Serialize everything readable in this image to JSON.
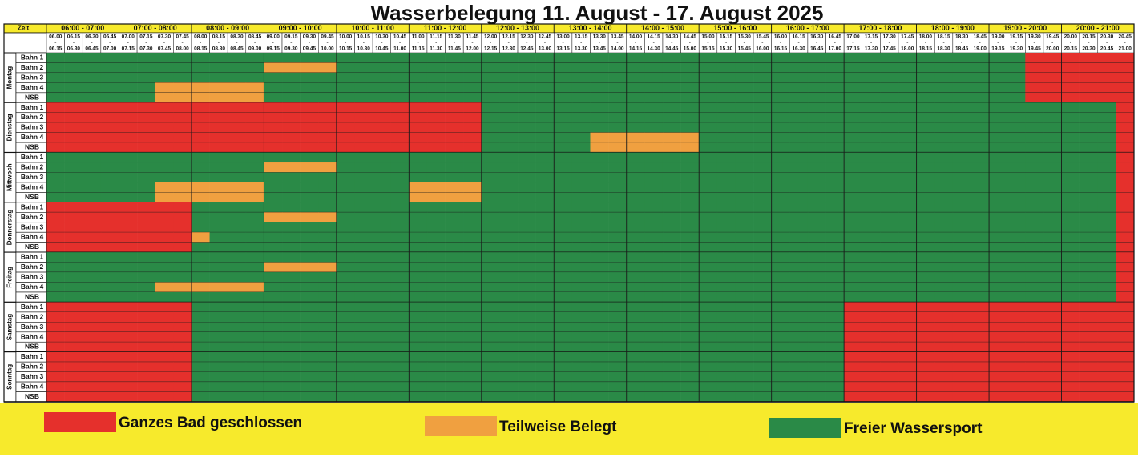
{
  "title": "Wasserbelegung 11. August - 17. August 2025",
  "header": {
    "corner": "Zeit",
    "hours": [
      "06:00 - 07:00",
      "07:00 - 08:00",
      "08:00 - 09:00",
      "09:00 - 10:00",
      "10:00 - 11:00",
      "11:00 - 12:00",
      "12:00 - 13:00",
      "13:00 - 14:00",
      "14:00 - 15:00",
      "15:00 - 16:00",
      "16:00 - 17:00",
      "17:00 - 18:00",
      "18:00 - 19:00",
      "19:00 - 20:00",
      "20:00 - 21:00"
    ],
    "separator": "-",
    "slots": [
      {
        "start": "06.00",
        "end": "06.15"
      },
      {
        "start": "06.15",
        "end": "06.30"
      },
      {
        "start": "06.30",
        "end": "06.45"
      },
      {
        "start": "06.45",
        "end": "07.00"
      },
      {
        "start": "07.00",
        "end": "07.15"
      },
      {
        "start": "07.15",
        "end": "07.30"
      },
      {
        "start": "07.30",
        "end": "07.45"
      },
      {
        "start": "07.45",
        "end": "08.00"
      },
      {
        "start": "08.00",
        "end": "08.15"
      },
      {
        "start": "08.15",
        "end": "08.30"
      },
      {
        "start": "08.30",
        "end": "08.45"
      },
      {
        "start": "08.45",
        "end": "09.00"
      },
      {
        "start": "09.00",
        "end": "09.15"
      },
      {
        "start": "09.15",
        "end": "09.30"
      },
      {
        "start": "09.30",
        "end": "09.45"
      },
      {
        "start": "09.45",
        "end": "10.00"
      },
      {
        "start": "10.00",
        "end": "10.15"
      },
      {
        "start": "10.15",
        "end": "10.30"
      },
      {
        "start": "10.30",
        "end": "10.45"
      },
      {
        "start": "10.45",
        "end": "11.00"
      },
      {
        "start": "11.00",
        "end": "11.15"
      },
      {
        "start": "11.15",
        "end": "11.30"
      },
      {
        "start": "11.30",
        "end": "11.45"
      },
      {
        "start": "11.45",
        "end": "12.00"
      },
      {
        "start": "12.00",
        "end": "12.15"
      },
      {
        "start": "12.15",
        "end": "12.30"
      },
      {
        "start": "12.30",
        "end": "12.45"
      },
      {
        "start": "12.45",
        "end": "13.00"
      },
      {
        "start": "13.00",
        "end": "13.15"
      },
      {
        "start": "13.15",
        "end": "13.30"
      },
      {
        "start": "13.30",
        "end": "13.45"
      },
      {
        "start": "13.45",
        "end": "14.00"
      },
      {
        "start": "14.00",
        "end": "14.15"
      },
      {
        "start": "14.15",
        "end": "14.30"
      },
      {
        "start": "14.30",
        "end": "14.45"
      },
      {
        "start": "14.45",
        "end": "15.00"
      },
      {
        "start": "15.00",
        "end": "15.15"
      },
      {
        "start": "15.15",
        "end": "15.30"
      },
      {
        "start": "15.30",
        "end": "15.45"
      },
      {
        "start": "15.45",
        "end": "16.00"
      },
      {
        "start": "16.00",
        "end": "16.15"
      },
      {
        "start": "16.15",
        "end": "16.30"
      },
      {
        "start": "16.30",
        "end": "16.45"
      },
      {
        "start": "16.45",
        "end": "17.00"
      },
      {
        "start": "17.00",
        "end": "17.15"
      },
      {
        "start": "17.15",
        "end": "17.30"
      },
      {
        "start": "17.30",
        "end": "17.45"
      },
      {
        "start": "17.45",
        "end": "18.00"
      },
      {
        "start": "18.00",
        "end": "18.15"
      },
      {
        "start": "18.15",
        "end": "18.30"
      },
      {
        "start": "18.30",
        "end": "18.45"
      },
      {
        "start": "18.45",
        "end": "19.00"
      },
      {
        "start": "19.00",
        "end": "19.15"
      },
      {
        "start": "19.15",
        "end": "19.30"
      },
      {
        "start": "19.30",
        "end": "19.45"
      },
      {
        "start": "19.45",
        "end": "20.00"
      },
      {
        "start": "20.00",
        "end": "20.15"
      },
      {
        "start": "20.15",
        "end": "20.30"
      },
      {
        "start": "20.30",
        "end": "20.45"
      },
      {
        "start": "20.45",
        "end": "21.00"
      }
    ]
  },
  "days": [
    {
      "name": "Montag",
      "lanes": [
        {
          "name": "Bahn 1",
          "cells": [
            "GGGG",
            "GGGG",
            "GGGG",
            "GGGG",
            "GGGG",
            "GGGG",
            "GGGG",
            "GGGG",
            "GGGG",
            "GGGG",
            "GGGG",
            "GGGG",
            "GGGG",
            "GGRR",
            "RRRR"
          ]
        },
        {
          "name": "Bahn 2",
          "cells": [
            "GGGG",
            "GGGG",
            "GGGG",
            "OOOO",
            "GGGG",
            "GGGG",
            "GGGG",
            "GGGG",
            "GGGG",
            "GGGG",
            "GGGG",
            "GGGG",
            "GGGG",
            "GGRR",
            "RRRR"
          ]
        },
        {
          "name": "Bahn 3",
          "cells": [
            "GGGG",
            "GGGG",
            "GGGG",
            "GGGG",
            "GGGG",
            "GGGG",
            "GGGG",
            "GGGG",
            "GGGG",
            "GGGG",
            "GGGG",
            "GGGG",
            "GGGG",
            "GGRR",
            "RRRR"
          ]
        },
        {
          "name": "Bahn 4",
          "cells": [
            "GGGG",
            "GGOO",
            "OOOO",
            "GGGG",
            "GGGG",
            "GGGG",
            "GGGG",
            "GGGG",
            "GGGG",
            "GGGG",
            "GGGG",
            "GGGG",
            "GGGG",
            "GGRR",
            "RRRR"
          ]
        },
        {
          "name": "NSB",
          "cells": [
            "GGGG",
            "GGOO",
            "OOOO",
            "GGGG",
            "GGGG",
            "GGGG",
            "GGGG",
            "GGGG",
            "GGGG",
            "GGGG",
            "GGGG",
            "GGGG",
            "GGGG",
            "GGRR",
            "RRRR"
          ]
        }
      ]
    },
    {
      "name": "Dienstag",
      "lanes": [
        {
          "name": "Bahn 1",
          "cells": [
            "RRRR",
            "RRRR",
            "RRRR",
            "RRRR",
            "RRRR",
            "RRRR",
            "GGGG",
            "GGGG",
            "GGGG",
            "GGGG",
            "GGGG",
            "GGGG",
            "GGGG",
            "GGGG",
            "GGGR"
          ]
        },
        {
          "name": "Bahn 2",
          "cells": [
            "RRRR",
            "RRRR",
            "RRRR",
            "RRRR",
            "RRRR",
            "RRRR",
            "GGGG",
            "GGGG",
            "GGGG",
            "GGGG",
            "GGGG",
            "GGGG",
            "GGGG",
            "GGGG",
            "GGGR"
          ]
        },
        {
          "name": "Bahn 3",
          "cells": [
            "RRRR",
            "RRRR",
            "RRRR",
            "RRRR",
            "RRRR",
            "RRRR",
            "GGGG",
            "GGGG",
            "GGGG",
            "GGGG",
            "GGGG",
            "GGGG",
            "GGGG",
            "GGGG",
            "GGGR"
          ]
        },
        {
          "name": "Bahn 4",
          "cells": [
            "RRRR",
            "RRRR",
            "RRRR",
            "RRRR",
            "RRRR",
            "RRRR",
            "GGGG",
            "GGOO",
            "OOOO",
            "GGGG",
            "GGGG",
            "GGGG",
            "GGGG",
            "GGGG",
            "GGGR"
          ]
        },
        {
          "name": "NSB",
          "cells": [
            "RRRR",
            "RRRR",
            "RRRR",
            "RRRR",
            "RRRR",
            "RRRR",
            "GGGG",
            "GGOO",
            "OOOO",
            "GGGG",
            "GGGG",
            "GGGG",
            "GGGG",
            "GGGG",
            "GGGR"
          ]
        }
      ]
    },
    {
      "name": "Mittwoch",
      "lanes": [
        {
          "name": "Bahn 1",
          "cells": [
            "GGGG",
            "GGGG",
            "GGGG",
            "GGGG",
            "GGGG",
            "GGGG",
            "GGGG",
            "GGGG",
            "GGGG",
            "GGGG",
            "GGGG",
            "GGGG",
            "GGGG",
            "GGGG",
            "GGGR"
          ]
        },
        {
          "name": "Bahn 2",
          "cells": [
            "GGGG",
            "GGGG",
            "GGGG",
            "OOOO",
            "GGGG",
            "GGGG",
            "GGGG",
            "GGGG",
            "GGGG",
            "GGGG",
            "GGGG",
            "GGGG",
            "GGGG",
            "GGGG",
            "GGGR"
          ]
        },
        {
          "name": "Bahn 3",
          "cells": [
            "GGGG",
            "GGGG",
            "GGGG",
            "GGGG",
            "GGGG",
            "GGGG",
            "GGGG",
            "GGGG",
            "GGGG",
            "GGGG",
            "GGGG",
            "GGGG",
            "GGGG",
            "GGGG",
            "GGGR"
          ]
        },
        {
          "name": "Bahn 4",
          "cells": [
            "GGGG",
            "GGOO",
            "OOOO",
            "GGGG",
            "GGGG",
            "OOOO",
            "GGGG",
            "GGGG",
            "GGGG",
            "GGGG",
            "GGGG",
            "GGGG",
            "GGGG",
            "GGGG",
            "GGGR"
          ]
        },
        {
          "name": "NSB",
          "cells": [
            "GGGG",
            "GGOO",
            "OOOO",
            "GGGG",
            "GGGG",
            "OOOO",
            "GGGG",
            "GGGG",
            "GGGG",
            "GGGG",
            "GGGG",
            "GGGG",
            "GGGG",
            "GGGG",
            "GGGR"
          ]
        }
      ]
    },
    {
      "name": "Donnerstag",
      "lanes": [
        {
          "name": "Bahn 1",
          "cells": [
            "RRRR",
            "RRRR",
            "GGGG",
            "GGGG",
            "GGGG",
            "GGGG",
            "GGGG",
            "GGGG",
            "GGGG",
            "GGGG",
            "GGGG",
            "GGGG",
            "GGGG",
            "GGGG",
            "GGGR"
          ]
        },
        {
          "name": "Bahn 2",
          "cells": [
            "RRRR",
            "RRRR",
            "GGGG",
            "OOOO",
            "GGGG",
            "GGGG",
            "GGGG",
            "GGGG",
            "GGGG",
            "GGGG",
            "GGGG",
            "GGGG",
            "GGGG",
            "GGGG",
            "GGGR"
          ]
        },
        {
          "name": "Bahn 3",
          "cells": [
            "RRRR",
            "RRRR",
            "GGGG",
            "GGGG",
            "GGGG",
            "GGGG",
            "GGGG",
            "GGGG",
            "GGGG",
            "GGGG",
            "GGGG",
            "GGGG",
            "GGGG",
            "GGGG",
            "GGGR"
          ]
        },
        {
          "name": "Bahn 4",
          "cells": [
            "RRRR",
            "RRRR",
            "OGGG",
            "GGGG",
            "GGGG",
            "GGGG",
            "GGGG",
            "GGGG",
            "GGGG",
            "GGGG",
            "GGGG",
            "GGGG",
            "GGGG",
            "GGGG",
            "GGGR"
          ]
        },
        {
          "name": "NSB",
          "cells": [
            "RRRR",
            "RRRR",
            "GGGG",
            "GGGG",
            "GGGG",
            "GGGG",
            "GGGG",
            "GGGG",
            "GGGG",
            "GGGG",
            "GGGG",
            "GGGG",
            "GGGG",
            "GGGG",
            "GGGR"
          ]
        }
      ]
    },
    {
      "name": "Freitag",
      "lanes": [
        {
          "name": "Bahn 1",
          "cells": [
            "GGGG",
            "GGGG",
            "GGGG",
            "GGGG",
            "GGGG",
            "GGGG",
            "GGGG",
            "GGGG",
            "GGGG",
            "GGGG",
            "GGGG",
            "GGGG",
            "GGGG",
            "GGGG",
            "GGGR"
          ]
        },
        {
          "name": "Bahn 2",
          "cells": [
            "GGGG",
            "GGGG",
            "GGGG",
            "OOOO",
            "GGGG",
            "GGGG",
            "GGGG",
            "GGGG",
            "GGGG",
            "GGGG",
            "GGGG",
            "GGGG",
            "GGGG",
            "GGGG",
            "GGGR"
          ]
        },
        {
          "name": "Bahn 3",
          "cells": [
            "GGGG",
            "GGGG",
            "GGGG",
            "GGGG",
            "GGGG",
            "GGGG",
            "GGGG",
            "GGGG",
            "GGGG",
            "GGGG",
            "GGGG",
            "GGGG",
            "GGGG",
            "GGGG",
            "GGGR"
          ]
        },
        {
          "name": "Bahn 4",
          "cells": [
            "GGGG",
            "GGOO",
            "OOOO",
            "GGGG",
            "GGGG",
            "GGGG",
            "GGGG",
            "GGGG",
            "GGGG",
            "GGGG",
            "GGGG",
            "GGGG",
            "GGGG",
            "GGGG",
            "GGGR"
          ]
        },
        {
          "name": "NSB",
          "cells": [
            "GGGG",
            "GGGG",
            "GGGG",
            "GGGG",
            "GGGG",
            "GGGG",
            "GGGG",
            "GGGG",
            "GGGG",
            "GGGG",
            "GGGG",
            "GGGG",
            "GGGG",
            "GGGG",
            "GGGR"
          ]
        }
      ]
    },
    {
      "name": "Samstag",
      "lanes": [
        {
          "name": "Bahn 1",
          "cells": [
            "RRRR",
            "RRRR",
            "GGGG",
            "GGGG",
            "GGGG",
            "GGGG",
            "GGGG",
            "GGGG",
            "GGGG",
            "GGGG",
            "GGGG",
            "RRRR",
            "RRRR",
            "RRRR",
            "RRRR"
          ]
        },
        {
          "name": "Bahn 2",
          "cells": [
            "RRRR",
            "RRRR",
            "GGGG",
            "GGGG",
            "GGGG",
            "GGGG",
            "GGGG",
            "GGGG",
            "GGGG",
            "GGGG",
            "GGGG",
            "RRRR",
            "RRRR",
            "RRRR",
            "RRRR"
          ]
        },
        {
          "name": "Bahn 3",
          "cells": [
            "RRRR",
            "RRRR",
            "GGGG",
            "GGGG",
            "GGGG",
            "GGGG",
            "GGGG",
            "GGGG",
            "GGGG",
            "GGGG",
            "GGGG",
            "RRRR",
            "RRRR",
            "RRRR",
            "RRRR"
          ]
        },
        {
          "name": "Bahn 4",
          "cells": [
            "RRRR",
            "RRRR",
            "GGGG",
            "GGGG",
            "GGGG",
            "GGGG",
            "GGGG",
            "GGGG",
            "GGGG",
            "GGGG",
            "GGGG",
            "RRRR",
            "RRRR",
            "RRRR",
            "RRRR"
          ]
        },
        {
          "name": "NSB",
          "cells": [
            "RRRR",
            "RRRR",
            "GGGG",
            "GGGG",
            "GGGG",
            "GGGG",
            "GGGG",
            "GGGG",
            "GGGG",
            "GGGG",
            "GGGG",
            "RRRR",
            "RRRR",
            "RRRR",
            "RRRR"
          ]
        }
      ]
    },
    {
      "name": "Sonntag",
      "lanes": [
        {
          "name": "Bahn 1",
          "cells": [
            "RRRR",
            "RRRR",
            "GGGG",
            "GGGG",
            "GGGG",
            "GGGG",
            "GGGG",
            "GGGG",
            "GGGG",
            "GGGG",
            "GGGG",
            "RRRR",
            "RRRR",
            "RRRR",
            "RRRR"
          ]
        },
        {
          "name": "Bahn 2",
          "cells": [
            "RRRR",
            "RRRR",
            "GGGG",
            "GGGG",
            "GGGG",
            "GGGG",
            "GGGG",
            "GGGG",
            "GGGG",
            "GGGG",
            "GGGG",
            "RRRR",
            "RRRR",
            "RRRR",
            "RRRR"
          ]
        },
        {
          "name": "Bahn 3",
          "cells": [
            "RRRR",
            "RRRR",
            "GGGG",
            "GGGG",
            "GGGG",
            "GGGG",
            "GGGG",
            "GGGG",
            "GGGG",
            "GGGG",
            "GGGG",
            "RRRR",
            "RRRR",
            "RRRR",
            "RRRR"
          ]
        },
        {
          "name": "Bahn 4",
          "cells": [
            "RRRR",
            "RRRR",
            "GGGG",
            "GGGG",
            "GGGG",
            "GGGG",
            "GGGG",
            "GGGG",
            "GGGG",
            "GGGG",
            "GGGG",
            "RRRR",
            "RRRR",
            "RRRR",
            "RRRR"
          ]
        },
        {
          "name": "NSB",
          "cells": [
            "RRRR",
            "RRRR",
            "GGGG",
            "GGGG",
            "GGGG",
            "GGGG",
            "GGGG",
            "GGGG",
            "GGGG",
            "GGGG",
            "GGGG",
            "RRRR",
            "RRRR",
            "RRRR",
            "RRRR"
          ]
        }
      ]
    }
  ],
  "legend": [
    {
      "key": "R",
      "label": "Ganzes Bad geschlossen",
      "color": "#e5302c"
    },
    {
      "key": "O",
      "label": "Teilweise Belegt",
      "color": "#f0a040"
    },
    {
      "key": "G",
      "label": "Freier Wassersport",
      "color": "#2a8a47"
    }
  ]
}
